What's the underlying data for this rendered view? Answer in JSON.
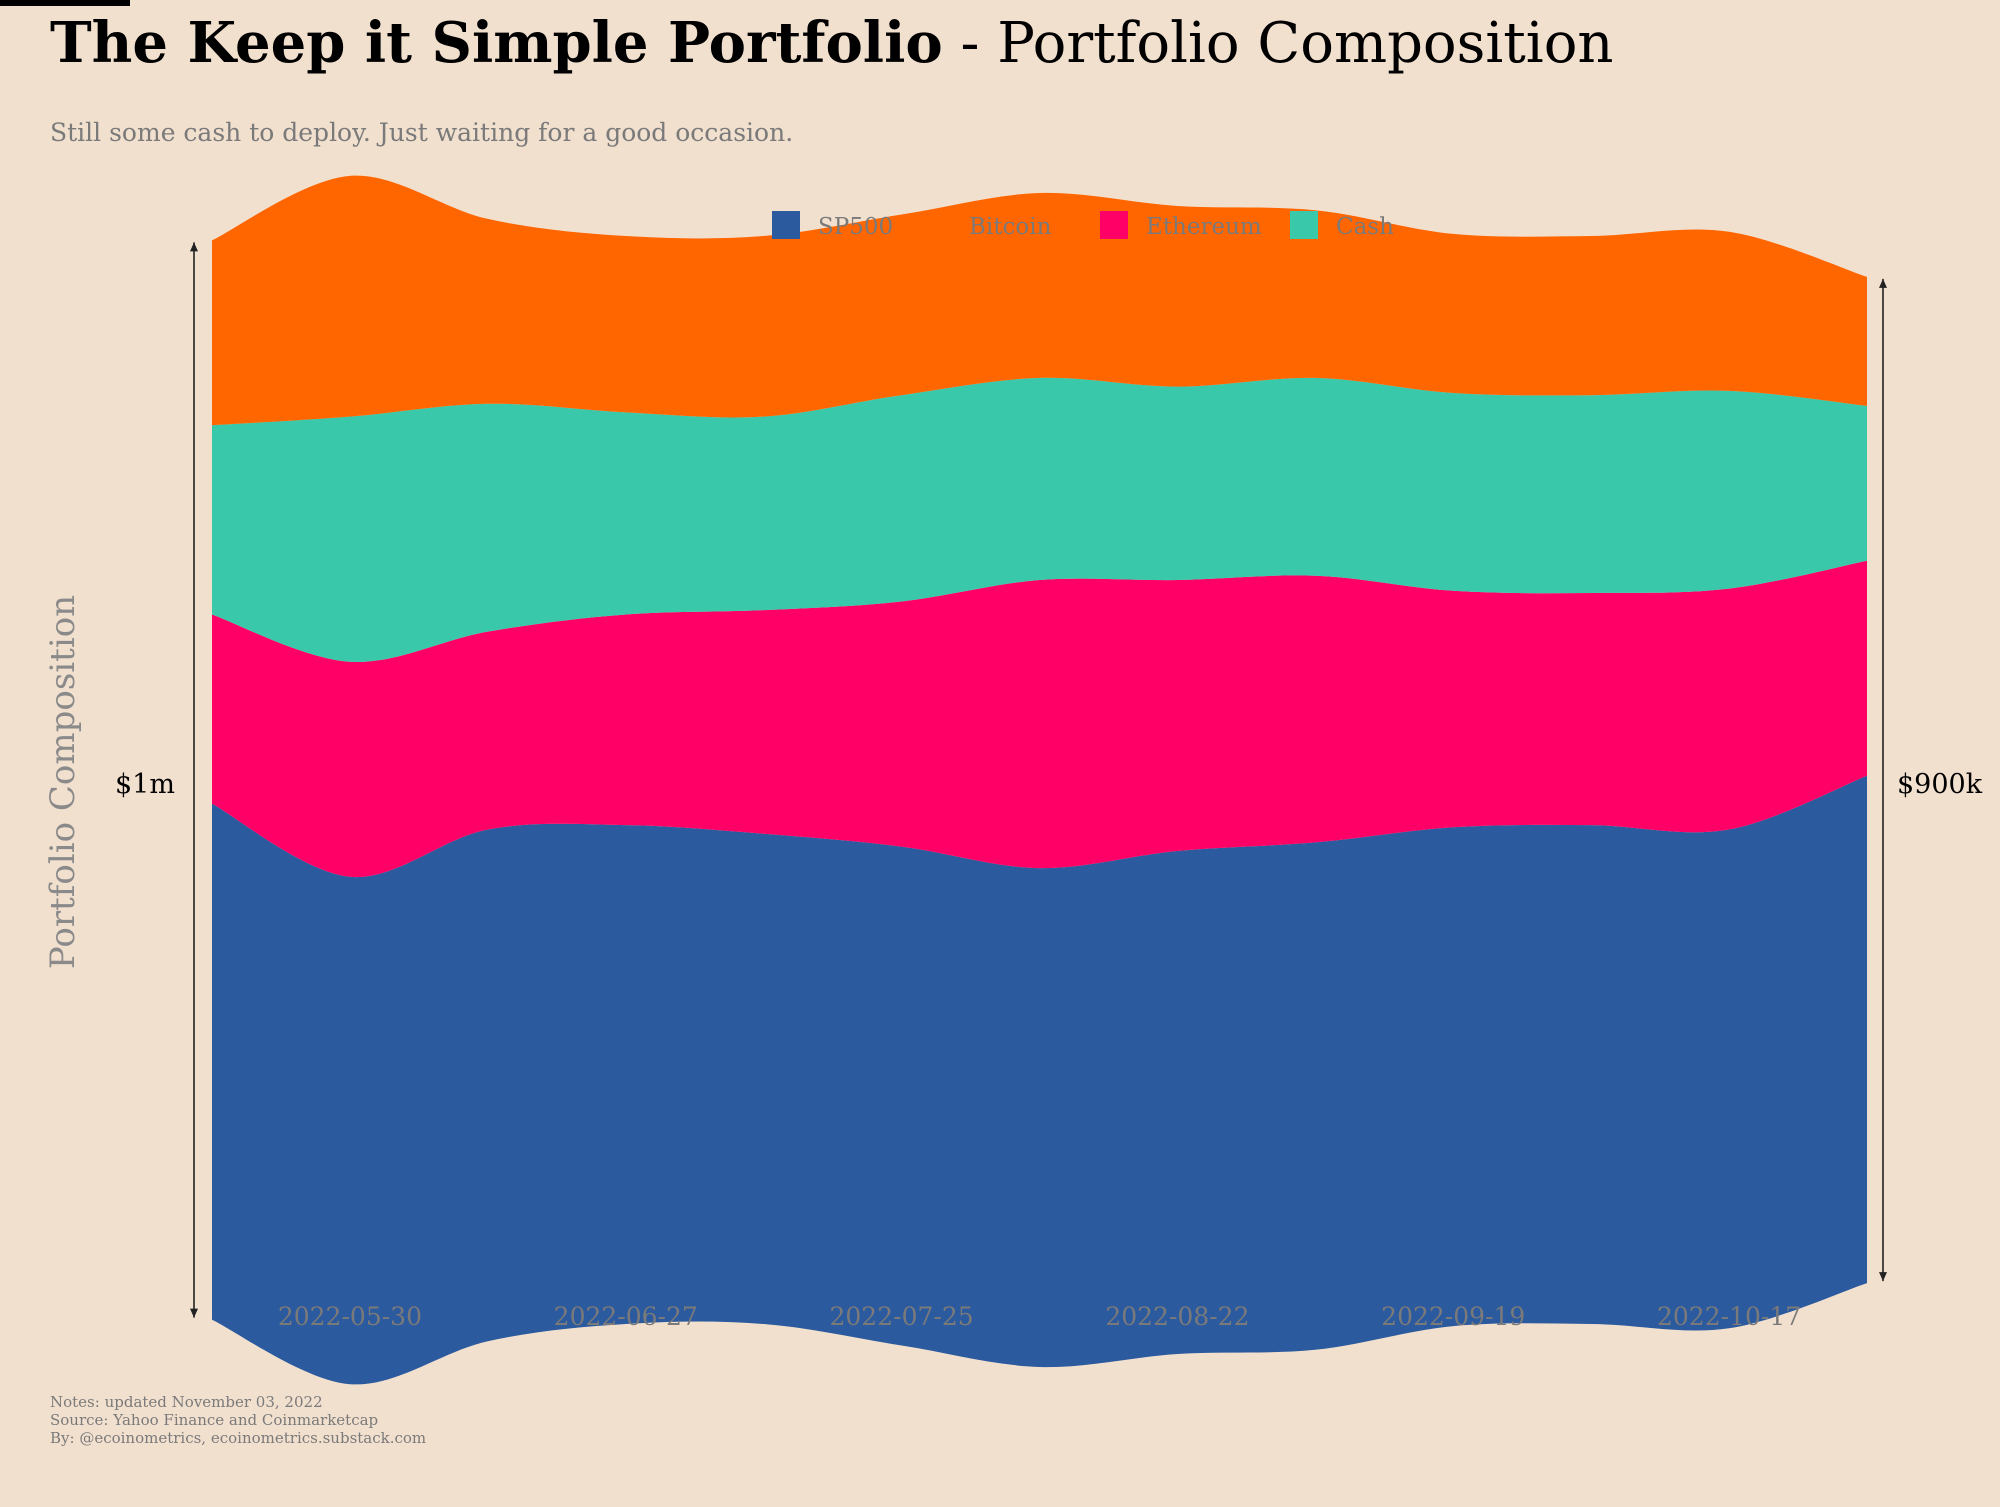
{
  "header": {
    "title_bold": "The Keep it Simple Portfolio",
    "title_rest": " - Portfolio Composition",
    "subtitle": "Still some cash to deploy. Just waiting for a good occasion."
  },
  "notes": {
    "line1": "Notes: updated November 03, 2022",
    "line2": "Source: Yahoo Finance and Coinmarketcap",
    "line3": "By: @ecoinometrics, ecoinometrics.substack.com"
  },
  "chart_data": {
    "type": "area",
    "subtype": "streamgraph",
    "ylabel": "Portfolio Composition",
    "grid": "vertical dashed at x ticks",
    "legend_position": "top",
    "x": [
      "2022-05-16",
      "2022-05-30",
      "2022-06-13",
      "2022-06-27",
      "2022-07-11",
      "2022-07-25",
      "2022-08-08",
      "2022-08-22",
      "2022-09-05",
      "2022-09-19",
      "2022-10-03",
      "2022-10-17",
      "2022-10-31"
    ],
    "x_ticks": [
      "2022-05-30",
      "2022-06-27",
      "2022-07-25",
      "2022-08-22",
      "2022-09-19",
      "2022-10-17"
    ],
    "series": [
      {
        "name": "SP500",
        "color": "#2c5a9e",
        "values": [
          600,
          590,
          595,
          580,
          570,
          580,
          580,
          585,
          590,
          580,
          580,
          580,
          590
        ]
      },
      {
        "name": "Ethereum",
        "color": "#ff0066",
        "values": [
          220,
          250,
          230,
          245,
          260,
          285,
          335,
          315,
          310,
          275,
          270,
          280,
          250
        ]
      },
      {
        "name": "Cash",
        "color": "#3ac8aa",
        "values": [
          220,
          285,
          265,
          235,
          225,
          240,
          235,
          225,
          230,
          230,
          230,
          230,
          180
        ]
      },
      {
        "name": "Bitcoin",
        "color": "#ff6600",
        "values": [
          215,
          280,
          215,
          205,
          210,
          210,
          215,
          210,
          195,
          185,
          185,
          185,
          150
        ]
      }
    ],
    "annotations": [
      {
        "label": "$1m",
        "side": "left"
      },
      {
        "label": "$900k",
        "side": "right"
      }
    ]
  }
}
